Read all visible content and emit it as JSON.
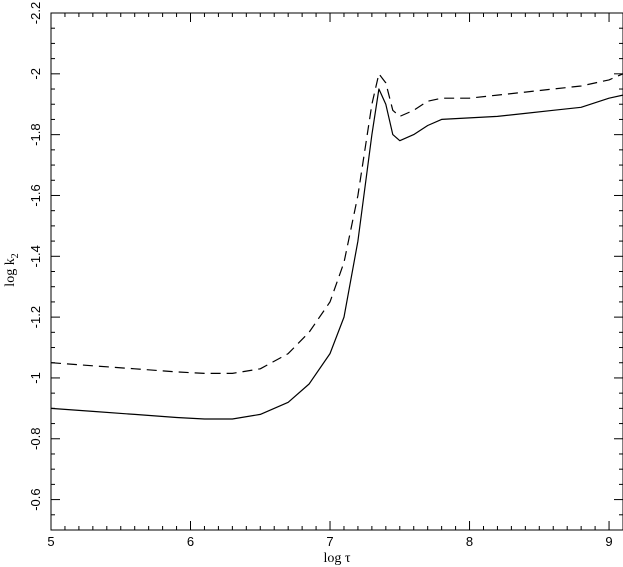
{
  "chart_data": {
    "type": "line",
    "xlabel": "log τ",
    "ylabel_main": "log k",
    "ylabel_sub": "2",
    "xlim": [
      5,
      9.1
    ],
    "ylim": [
      -0.5,
      -2.2
    ],
    "y_axis_inverted": true,
    "grid": false,
    "x_ticks": [
      5,
      6,
      7,
      8,
      9
    ],
    "x_tick_labels": [
      "5",
      "6",
      "7",
      "8",
      "9"
    ],
    "y_ticks": [
      -0.6,
      -0.8,
      -1.0,
      -1.2,
      -1.4,
      -1.6,
      -1.8,
      -2.0,
      -2.2
    ],
    "y_tick_labels": [
      "-0.6",
      "-0.8",
      "-1",
      "-1.2",
      "-1.4",
      "-1.6",
      "-1.8",
      "-2",
      "-2.2"
    ],
    "series": [
      {
        "style": "solid",
        "x": [
          5.0,
          5.3,
          5.6,
          5.9,
          6.1,
          6.3,
          6.5,
          6.7,
          6.85,
          7.0,
          7.1,
          7.2,
          7.3,
          7.35,
          7.4,
          7.45,
          7.5,
          7.6,
          7.7,
          7.8,
          8.0,
          8.2,
          8.4,
          8.6,
          8.8,
          9.0,
          9.1
        ],
        "y": [
          -0.9,
          -0.89,
          -0.88,
          -0.87,
          -0.865,
          -0.865,
          -0.88,
          -0.92,
          -0.98,
          -1.08,
          -1.2,
          -1.45,
          -1.8,
          -1.95,
          -1.9,
          -1.8,
          -1.78,
          -1.8,
          -1.83,
          -1.85,
          -1.855,
          -1.86,
          -1.87,
          -1.88,
          -1.89,
          -1.92,
          -1.93
        ]
      },
      {
        "style": "dashed",
        "x": [
          5.0,
          5.3,
          5.6,
          5.9,
          6.1,
          6.3,
          6.5,
          6.7,
          6.85,
          7.0,
          7.1,
          7.2,
          7.3,
          7.35,
          7.4,
          7.45,
          7.5,
          7.6,
          7.7,
          7.8,
          8.0,
          8.2,
          8.4,
          8.6,
          8.8,
          9.0,
          9.1
        ],
        "y": [
          -1.05,
          -1.04,
          -1.03,
          -1.02,
          -1.015,
          -1.015,
          -1.03,
          -1.08,
          -1.15,
          -1.25,
          -1.38,
          -1.6,
          -1.9,
          -2.0,
          -1.97,
          -1.88,
          -1.86,
          -1.88,
          -1.91,
          -1.92,
          -1.92,
          -1.93,
          -1.94,
          -1.95,
          -1.96,
          -1.98,
          -2.0
        ]
      }
    ]
  }
}
